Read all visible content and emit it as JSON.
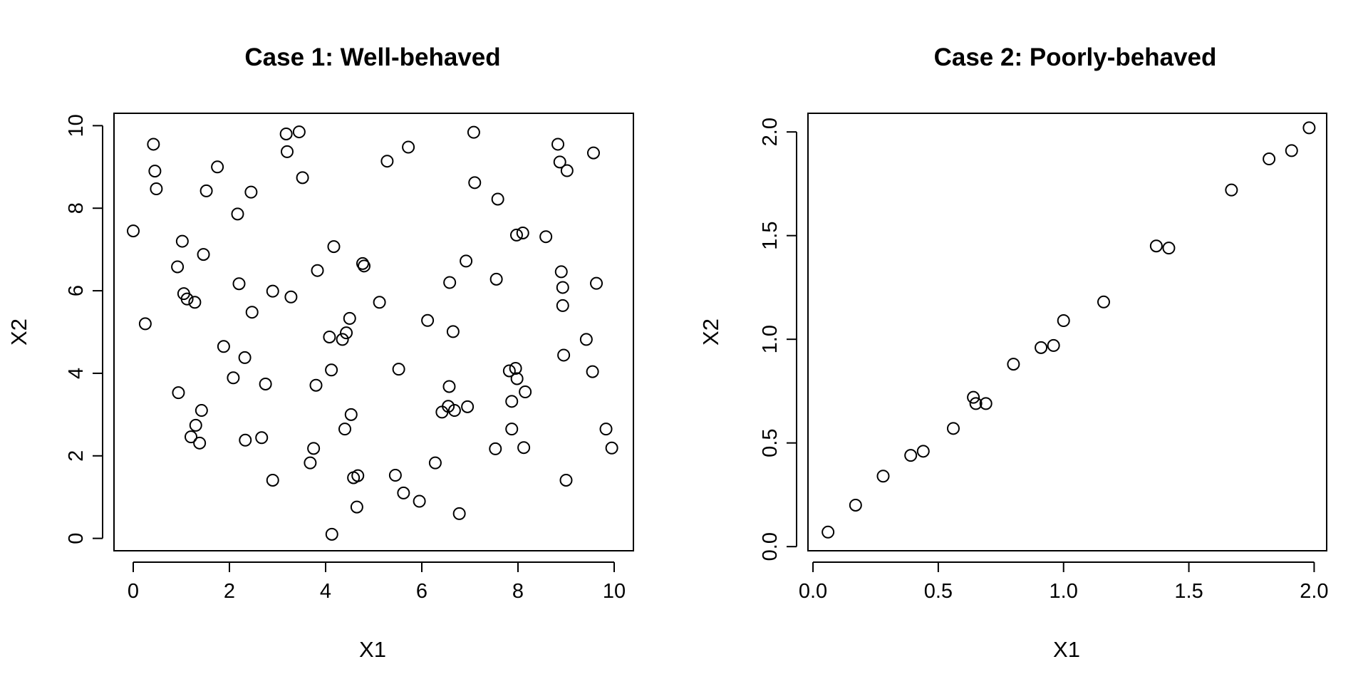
{
  "chart_data": [
    {
      "type": "scatter",
      "title": "Case 1: Well-behaved",
      "xlabel": "X1",
      "ylabel": "X2",
      "xlim": [
        -0.4,
        10.4
      ],
      "ylim": [
        -0.3,
        10.3
      ],
      "xticks": [
        "0",
        "2",
        "4",
        "6",
        "8",
        "10"
      ],
      "yticks": [
        "0",
        "2",
        "4",
        "6",
        "8",
        "10"
      ],
      "grid": false,
      "points": [
        [
          0.0,
          7.45
        ],
        [
          0.25,
          5.2
        ],
        [
          0.42,
          9.55
        ],
        [
          0.45,
          8.9
        ],
        [
          0.48,
          8.47
        ],
        [
          0.92,
          6.58
        ],
        [
          0.94,
          3.53
        ],
        [
          1.02,
          7.2
        ],
        [
          1.05,
          5.93
        ],
        [
          1.12,
          5.8
        ],
        [
          1.2,
          2.46
        ],
        [
          1.28,
          5.72
        ],
        [
          1.3,
          2.74
        ],
        [
          1.38,
          2.31
        ],
        [
          1.42,
          3.1
        ],
        [
          1.46,
          6.88
        ],
        [
          1.52,
          8.42
        ],
        [
          1.75,
          9.0
        ],
        [
          1.88,
          4.65
        ],
        [
          2.08,
          3.89
        ],
        [
          2.17,
          7.86
        ],
        [
          2.2,
          6.17
        ],
        [
          2.32,
          4.38
        ],
        [
          2.33,
          2.38
        ],
        [
          2.45,
          8.39
        ],
        [
          2.47,
          5.48
        ],
        [
          2.67,
          2.44
        ],
        [
          2.75,
          3.74
        ],
        [
          2.9,
          5.99
        ],
        [
          2.9,
          1.41
        ],
        [
          3.18,
          9.8
        ],
        [
          3.2,
          9.37
        ],
        [
          3.28,
          5.85
        ],
        [
          3.45,
          9.85
        ],
        [
          3.52,
          8.74
        ],
        [
          3.68,
          1.83
        ],
        [
          3.75,
          2.18
        ],
        [
          3.8,
          3.71
        ],
        [
          3.83,
          6.49
        ],
        [
          4.08,
          4.88
        ],
        [
          4.12,
          4.08
        ],
        [
          4.13,
          0.1
        ],
        [
          4.17,
          7.07
        ],
        [
          4.35,
          4.82
        ],
        [
          4.4,
          2.65
        ],
        [
          4.43,
          4.98
        ],
        [
          4.5,
          5.33
        ],
        [
          4.53,
          3.0
        ],
        [
          4.58,
          1.47
        ],
        [
          4.65,
          0.76
        ],
        [
          4.67,
          1.52
        ],
        [
          4.77,
          6.66
        ],
        [
          4.8,
          6.6
        ],
        [
          5.12,
          5.72
        ],
        [
          5.28,
          9.14
        ],
        [
          5.45,
          1.53
        ],
        [
          5.52,
          4.1
        ],
        [
          5.62,
          1.1
        ],
        [
          5.72,
          9.48
        ],
        [
          5.95,
          0.9
        ],
        [
          6.12,
          5.28
        ],
        [
          6.28,
          1.83
        ],
        [
          6.42,
          3.06
        ],
        [
          6.55,
          3.2
        ],
        [
          6.57,
          3.68
        ],
        [
          6.58,
          6.2
        ],
        [
          6.65,
          5.01
        ],
        [
          6.68,
          3.1
        ],
        [
          6.78,
          0.6
        ],
        [
          6.92,
          6.72
        ],
        [
          6.95,
          3.19
        ],
        [
          7.08,
          9.84
        ],
        [
          7.1,
          8.62
        ],
        [
          7.53,
          2.17
        ],
        [
          7.55,
          6.28
        ],
        [
          7.58,
          8.22
        ],
        [
          7.82,
          4.06
        ],
        [
          7.87,
          3.32
        ],
        [
          7.87,
          2.65
        ],
        [
          7.95,
          4.12
        ],
        [
          7.97,
          7.35
        ],
        [
          7.98,
          3.87
        ],
        [
          8.1,
          7.4
        ],
        [
          8.12,
          2.2
        ],
        [
          8.15,
          3.55
        ],
        [
          8.58,
          7.31
        ],
        [
          8.83,
          9.55
        ],
        [
          8.87,
          9.12
        ],
        [
          8.9,
          6.46
        ],
        [
          8.93,
          6.08
        ],
        [
          8.93,
          5.64
        ],
        [
          8.95,
          4.44
        ],
        [
          9.02,
          8.91
        ],
        [
          9.0,
          1.41
        ],
        [
          9.42,
          4.82
        ],
        [
          9.55,
          4.04
        ],
        [
          9.57,
          9.34
        ],
        [
          9.63,
          6.18
        ],
        [
          9.83,
          2.65
        ],
        [
          9.95,
          2.19
        ]
      ]
    },
    {
      "type": "scatter",
      "title": "Case 2: Poorly-behaved",
      "xlabel": "X1",
      "ylabel": "X2",
      "xlim": [
        -0.02,
        2.05
      ],
      "ylim": [
        -0.02,
        2.09
      ],
      "xticks": [
        "0.0",
        "0.5",
        "1.0",
        "1.5",
        "2.0"
      ],
      "yticks": [
        "0.0",
        "0.5",
        "1.0",
        "1.5",
        "2.0"
      ],
      "grid": false,
      "points": [
        [
          0.06,
          0.07
        ],
        [
          0.17,
          0.2
        ],
        [
          0.28,
          0.34
        ],
        [
          0.39,
          0.44
        ],
        [
          0.44,
          0.46
        ],
        [
          0.56,
          0.57
        ],
        [
          0.64,
          0.72
        ],
        [
          0.65,
          0.69
        ],
        [
          0.69,
          0.69
        ],
        [
          0.8,
          0.88
        ],
        [
          0.91,
          0.96
        ],
        [
          0.96,
          0.97
        ],
        [
          1.0,
          1.09
        ],
        [
          1.16,
          1.18
        ],
        [
          1.37,
          1.45
        ],
        [
          1.42,
          1.44
        ],
        [
          1.67,
          1.72
        ],
        [
          1.82,
          1.87
        ],
        [
          1.91,
          1.91
        ],
        [
          1.98,
          2.02
        ]
      ]
    }
  ]
}
